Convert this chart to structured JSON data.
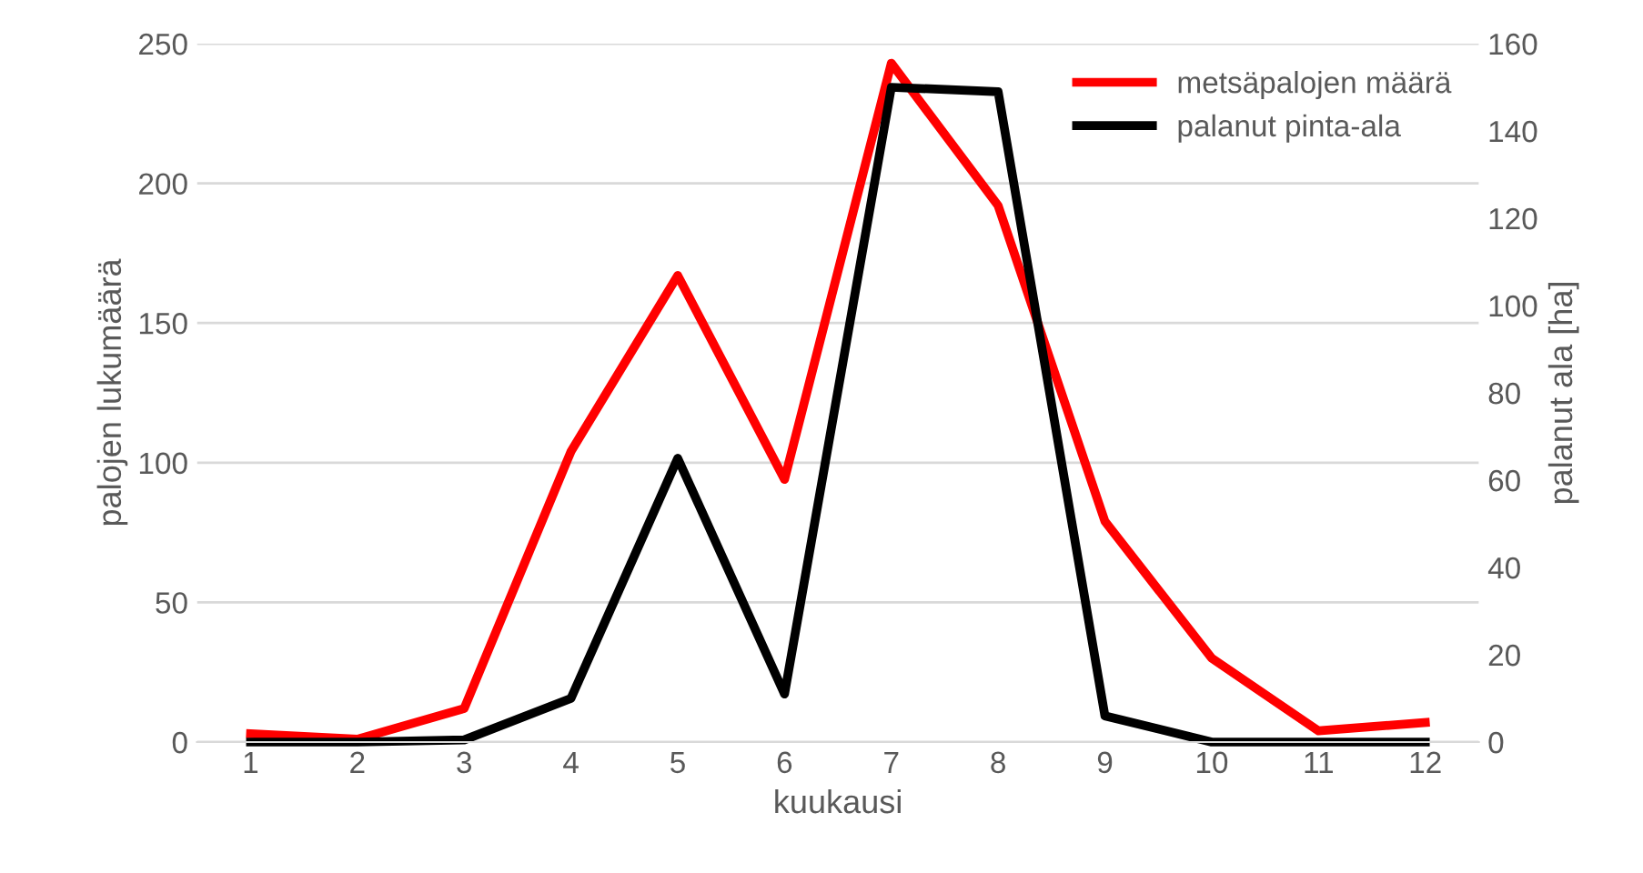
{
  "chart_data": {
    "type": "line",
    "xlabel": "kuukausi",
    "ylabel": "palojen lukumäärä",
    "y2label": "palanut ala [ha]",
    "categories": [
      "1",
      "2",
      "3",
      "4",
      "5",
      "6",
      "7",
      "8",
      "9",
      "10",
      "11",
      "12"
    ],
    "series": [
      {
        "name": "metsäpalojen määrä",
        "color": "#ff0000",
        "values": [
          3,
          1,
          12,
          104,
          167,
          94,
          243,
          192,
          79,
          30,
          4,
          7
        ]
      },
      {
        "name": "palanut pinta-ala",
        "color": "#000000",
        "axis": "y2",
        "values": [
          0,
          0,
          0.5,
          10,
          65,
          11,
          150,
          149,
          6,
          0,
          0,
          0
        ]
      }
    ],
    "ylim": [
      0,
      250
    ],
    "yticks": [
      0,
      50,
      100,
      150,
      200,
      250
    ],
    "y2lim": [
      0,
      160
    ],
    "y2ticks": [
      0,
      20,
      40,
      60,
      80,
      100,
      120,
      140,
      160
    ],
    "grid": "y",
    "legend": "top right",
    "marker": "none",
    "line_style": "solid"
  }
}
